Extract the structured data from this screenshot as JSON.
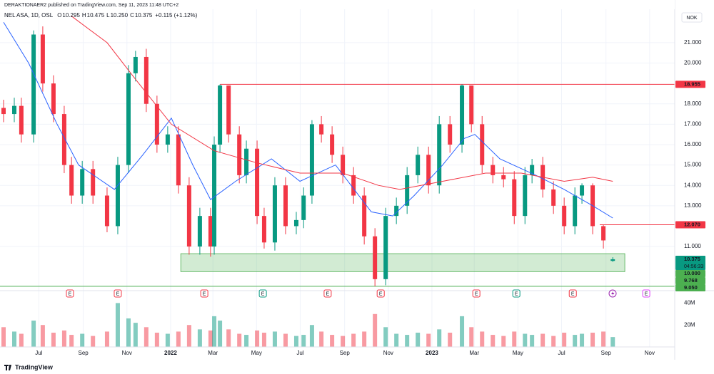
{
  "chart_data": {
    "type": "candlestick",
    "header": "DERAKTIONAER2 published on TradingView.com, Sep 11, 2023 11:48 UTC+2",
    "currency": "NOK",
    "symbol": "NEL ASA, 1D, OSL",
    "legend": [
      {
        "key": "O",
        "value": "10.295"
      },
      {
        "key": "H",
        "value": "10.475"
      },
      {
        "key": "L",
        "value": "10.250"
      },
      {
        "key": "C",
        "value": "10.375"
      }
    ],
    "change": "+0.115 (+1.12%)",
    "footer": "TradingView",
    "up_color": "#089981",
    "down_color": "#f23645",
    "grid": true,
    "xlim": [
      2021.361,
      2023.929
    ],
    "xticks": [
      {
        "value": 2021.496,
        "label": "Jul"
      },
      {
        "value": 2021.666,
        "label": "Sep"
      },
      {
        "value": 2021.833,
        "label": "Nov"
      },
      {
        "value": 2022.0,
        "label": "2022"
      },
      {
        "value": 2022.162,
        "label": "Mar"
      },
      {
        "value": 2022.329,
        "label": "May"
      },
      {
        "value": 2022.496,
        "label": "Jul"
      },
      {
        "value": 2022.666,
        "label": "Sep"
      },
      {
        "value": 2022.833,
        "label": "Nov"
      },
      {
        "value": 2023.0,
        "label": "2023"
      },
      {
        "value": 2023.162,
        "label": "Mar"
      },
      {
        "value": 2023.329,
        "label": "May"
      },
      {
        "value": 2023.496,
        "label": "Jul"
      },
      {
        "value": 2023.666,
        "label": "Sep"
      },
      {
        "value": 2023.833,
        "label": "Nov"
      }
    ],
    "ylim": [
      8.94,
      22.57
    ],
    "yticks": [
      {
        "value": 21,
        "label": "21.000"
      },
      {
        "value": 20,
        "label": "20.000"
      },
      {
        "value": 18,
        "label": "18.000"
      },
      {
        "value": 17,
        "label": "17.000"
      },
      {
        "value": 16,
        "label": "16.000"
      },
      {
        "value": 15,
        "label": "15.000"
      },
      {
        "value": 14,
        "label": "14.000"
      },
      {
        "value": 13,
        "label": "13.000"
      },
      {
        "value": 11,
        "label": "11.000"
      }
    ],
    "volume_ylim": [
      0,
      50000000
    ],
    "volume_ticks": [
      {
        "value": 40000000,
        "label": "40M"
      },
      {
        "value": 20000000,
        "label": "20M"
      }
    ],
    "x": [
      2021.361,
      2021.402,
      2021.429,
      2021.476,
      2021.511,
      2021.552,
      2021.593,
      2021.621,
      2021.662,
      2021.703,
      2021.757,
      2021.798,
      2021.839,
      2021.866,
      2021.907,
      2021.948,
      2021.989,
      2022.03,
      2022.071,
      2022.112,
      2022.153,
      2022.167,
      2022.189,
      2022.222,
      2022.263,
      2022.29,
      2022.331,
      2022.358,
      2022.399,
      2022.44,
      2022.481,
      2022.509,
      2022.541,
      2022.577,
      2022.618,
      2022.659,
      2022.7,
      2022.741,
      2022.782,
      2022.823,
      2022.864,
      2022.905,
      2022.946,
      2022.987,
      2023.028,
      2023.069,
      2023.115,
      2023.151,
      2023.192,
      2023.233,
      2023.274,
      2023.315,
      2023.356,
      2023.383,
      2023.424,
      2023.465,
      2023.506,
      2023.547,
      2023.574,
      2023.615,
      2023.656,
      2023.692
    ],
    "open": [
      17.8,
      17.5,
      17.9,
      16.5,
      21.4,
      19.0,
      17.5,
      15.0,
      13.5,
      14.8,
      13.5,
      12.0,
      15.0,
      19.5,
      20.3,
      18.0,
      16.0,
      16.5,
      14.0,
      11.0,
      12.5,
      11.0,
      16.0,
      18.9,
      16.5,
      14.5,
      15.8,
      12.5,
      11.2,
      14.0,
      12.0,
      12.3,
      13.5,
      17.0,
      16.5,
      15.5,
      14.5,
      13.5,
      11.5,
      9.4,
      12.5,
      13.0,
      14.5,
      15.5,
      14.0,
      17.0,
      16.0,
      18.9,
      17.0,
      15.0,
      14.5,
      14.3,
      12.5,
      14.5,
      15.0,
      13.8,
      13.0,
      12.0,
      13.5,
      14.0,
      12.0,
      10.295
    ],
    "high": [
      18.2,
      18.3,
      18.3,
      21.6,
      21.8,
      19.4,
      17.9,
      15.4,
      15.2,
      15.2,
      13.9,
      15.4,
      19.9,
      20.6,
      20.7,
      18.4,
      16.9,
      16.9,
      14.4,
      12.9,
      12.9,
      16.4,
      18.95,
      18.9,
      16.9,
      16.2,
      16.2,
      12.9,
      14.4,
      14.4,
      12.7,
      13.9,
      17.2,
      17.4,
      16.9,
      15.9,
      14.9,
      13.9,
      11.9,
      12.9,
      13.4,
      14.9,
      15.9,
      15.9,
      17.4,
      17.4,
      18.955,
      18.9,
      17.4,
      15.4,
      14.9,
      14.7,
      14.9,
      15.3,
      15.4,
      14.2,
      13.4,
      13.9,
      14.1,
      14.1,
      12.07,
      10.475
    ],
    "low": [
      17.1,
      17.1,
      16.1,
      16.1,
      18.6,
      17.1,
      14.6,
      13.1,
      13.1,
      13.1,
      11.7,
      11.6,
      14.6,
      19.1,
      17.6,
      15.6,
      15.6,
      13.6,
      10.6,
      10.6,
      10.5,
      10.6,
      15.6,
      16.1,
      14.1,
      14.1,
      12.1,
      10.9,
      10.8,
      11.6,
      11.6,
      11.9,
      13.1,
      16.1,
      15.1,
      14.1,
      13.1,
      11.1,
      9.05,
      9.1,
      12.1,
      12.6,
      14.1,
      13.6,
      13.6,
      15.6,
      15.6,
      16.6,
      14.6,
      14.1,
      13.9,
      12.1,
      12.1,
      14.1,
      13.4,
      12.6,
      11.6,
      11.6,
      13.1,
      11.6,
      10.9,
      10.25
    ],
    "close": [
      17.5,
      17.9,
      16.5,
      21.4,
      19.0,
      17.5,
      15.0,
      13.5,
      14.8,
      13.5,
      12.0,
      15.0,
      19.5,
      20.3,
      18.0,
      16.0,
      16.5,
      14.0,
      11.0,
      12.5,
      11.0,
      16.0,
      18.9,
      16.5,
      14.5,
      15.8,
      12.5,
      11.2,
      14.0,
      12.0,
      12.3,
      13.5,
      17.0,
      16.5,
      15.5,
      14.5,
      13.5,
      11.5,
      9.4,
      12.5,
      13.0,
      14.5,
      15.5,
      14.0,
      17.0,
      16.0,
      18.9,
      17.0,
      15.0,
      14.5,
      14.3,
      12.5,
      14.5,
      15.0,
      13.8,
      13.0,
      12.0,
      13.5,
      14.0,
      12.0,
      11.3,
      10.375
    ],
    "volume": [
      18000000,
      14000000,
      12000000,
      24000000,
      20000000,
      13000000,
      15000000,
      11000000,
      12000000,
      10000000,
      14000000,
      40000000,
      26000000,
      22000000,
      18000000,
      13000000,
      12000000,
      14000000,
      20000000,
      16000000,
      15000000,
      28000000,
      24000000,
      16000000,
      12000000,
      11000000,
      15000000,
      13000000,
      14000000,
      12000000,
      10000000,
      11000000,
      20000000,
      14000000,
      11000000,
      10000000,
      12000000,
      14000000,
      30000000,
      18000000,
      12000000,
      11000000,
      13000000,
      12000000,
      16000000,
      13000000,
      28000000,
      18000000,
      14000000,
      11000000,
      10000000,
      14000000,
      12000000,
      11000000,
      12000000,
      10000000,
      13000000,
      11000000,
      12000000,
      13000000,
      14000000,
      9000000
    ],
    "lines": [
      {
        "color": "#2962ff",
        "x": [
          2021.361,
          2021.457,
          2021.566,
          2021.648,
          2021.785,
          2021.894,
          2022.003,
          2022.085,
          2022.153,
          2022.249,
          2022.386,
          2022.495,
          2022.631,
          2022.768,
          2022.85,
          2022.932,
          2023.041,
          2023.123,
          2023.164,
          2023.26,
          2023.397,
          2023.506,
          2023.615,
          2023.692
        ],
        "values": [
          22.0,
          20.0,
          17.0,
          15.0,
          13.8,
          15.5,
          17.3,
          15.0,
          13.3,
          14.2,
          15.3,
          14.2,
          15.0,
          12.7,
          12.5,
          13.5,
          15.0,
          16.3,
          16.5,
          15.3,
          14.5,
          13.8,
          13.0,
          12.4
        ]
      },
      {
        "color": "#f23645",
        "x": [
          2021.621,
          2021.757,
          2021.866,
          2022.003,
          2022.167,
          2022.331,
          2022.495,
          2022.659,
          2022.795,
          2022.877,
          2023.041,
          2023.205,
          2023.342,
          2023.506,
          2023.615,
          2023.692
        ],
        "values": [
          22.3,
          21.0,
          19.2,
          17.0,
          15.7,
          15.1,
          14.6,
          14.6,
          14.0,
          13.8,
          14.2,
          14.6,
          14.6,
          14.2,
          14.4,
          14.2
        ]
      }
    ],
    "levels": [
      {
        "value": 18.955,
        "from": 2022.189,
        "color": "#f23645"
      },
      {
        "value": 12.07,
        "from": 2023.642,
        "color": "#f23645"
      },
      {
        "value": 9.05,
        "color": "#4caf50"
      }
    ],
    "zone": {
      "top": 10.65,
      "bottom": 9.768,
      "from": 2022.039,
      "to": 2023.738,
      "color": "#4caf50"
    },
    "price_labels": [
      {
        "value": 18.955,
        "label": "18.955",
        "color": "#f23645"
      },
      {
        "value": 12.07,
        "label": "12.070",
        "color": "#f23645"
      },
      {
        "value": 10.375,
        "label": "10.375",
        "countdown": "04:56:33",
        "color": "#089981"
      },
      {
        "value": 10.0,
        "label": "10.000",
        "color": "#4caf50"
      },
      {
        "value": 9.768,
        "label": "9.768",
        "color": "#4caf50"
      },
      {
        "value": 9.05,
        "label": "9.050",
        "color": "#4caf50"
      }
    ],
    "events": [
      {
        "x": 2021.615,
        "label": "E",
        "color": "#f23645"
      },
      {
        "x": 2021.798,
        "label": "E",
        "color": "#f23645"
      },
      {
        "x": 2022.129,
        "label": "E",
        "color": "#f23645"
      },
      {
        "x": 2022.353,
        "label": "E",
        "color": "#089981"
      },
      {
        "x": 2022.601,
        "label": "E",
        "color": "#f23645"
      },
      {
        "x": 2022.804,
        "label": "E",
        "color": "#f23645"
      },
      {
        "x": 2023.17,
        "label": "E",
        "color": "#f23645"
      },
      {
        "x": 2023.323,
        "label": "E",
        "color": "#089981"
      },
      {
        "x": 2023.539,
        "label": "E",
        "color": "#f23645"
      },
      {
        "x": 2023.82,
        "label": "E",
        "color": "#e040fb"
      }
    ]
  }
}
